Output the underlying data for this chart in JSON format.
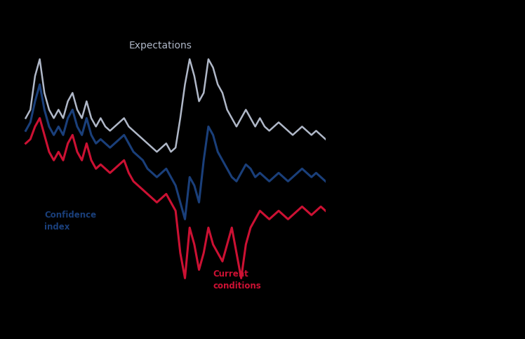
{
  "background_color": "#000000",
  "line_color_expectations": "#b0b8c8",
  "line_color_confidence": "#1a3f7a",
  "line_color_current": "#cc1133",
  "label_expectations": "Expectations",
  "label_confidence": "Confidence\nindex",
  "label_current": "Current\nconditions",
  "expectations": [
    18,
    20,
    28,
    32,
    24,
    20,
    18,
    20,
    18,
    22,
    24,
    20,
    18,
    22,
    18,
    16,
    18,
    16,
    15,
    16,
    17,
    18,
    16,
    15,
    14,
    13,
    12,
    11,
    10,
    11,
    12,
    10,
    11,
    18,
    26,
    32,
    28,
    22,
    24,
    32,
    30,
    26,
    24,
    20,
    18,
    16,
    18,
    20,
    18,
    16,
    18,
    16,
    15,
    16,
    17,
    16,
    15,
    14,
    15,
    16,
    15,
    14,
    15,
    14,
    13
  ],
  "confidence": [
    15,
    17,
    22,
    26,
    20,
    16,
    14,
    16,
    14,
    18,
    20,
    16,
    14,
    18,
    14,
    12,
    13,
    12,
    11,
    12,
    13,
    14,
    12,
    10,
    9,
    8,
    6,
    5,
    4,
    5,
    6,
    4,
    2,
    -2,
    -6,
    4,
    2,
    -2,
    8,
    16,
    14,
    10,
    8,
    6,
    4,
    3,
    5,
    7,
    6,
    4,
    5,
    4,
    3,
    4,
    5,
    4,
    3,
    4,
    5,
    6,
    5,
    4,
    5,
    4,
    3
  ],
  "current": [
    12,
    13,
    16,
    18,
    14,
    10,
    8,
    10,
    8,
    12,
    14,
    10,
    8,
    12,
    8,
    6,
    7,
    6,
    5,
    6,
    7,
    8,
    5,
    3,
    2,
    1,
    0,
    -1,
    -2,
    -1,
    0,
    -2,
    -4,
    -14,
    -20,
    -8,
    -12,
    -18,
    -14,
    -8,
    -12,
    -14,
    -16,
    -12,
    -8,
    -14,
    -20,
    -12,
    -8,
    -6,
    -4,
    -5,
    -6,
    -5,
    -4,
    -5,
    -6,
    -5,
    -4,
    -3,
    -4,
    -5,
    -4,
    -3,
    -4
  ]
}
